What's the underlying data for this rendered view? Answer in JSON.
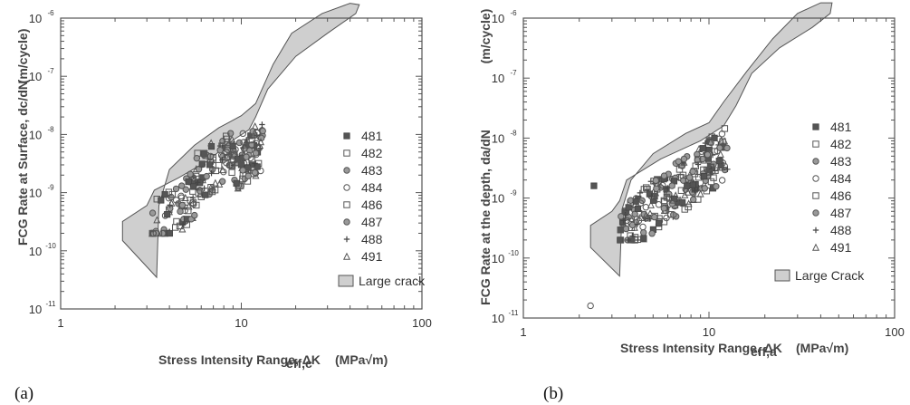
{
  "chart_data": [
    {
      "type": "scatter",
      "panel_label": "(a)",
      "xlabel": "Stress Intensity Range, ΔK",
      "xlabel_sub": "eff,c",
      "xlabel_unit": "(MPa√m)",
      "ylabel": "FCG Rate at Surface, dc/dN",
      "ylabel_unit": "(m/cycle)",
      "xscale": "log",
      "yscale": "log",
      "xlim": [
        1,
        100
      ],
      "ylim": [
        1e-11,
        1e-06
      ],
      "x_ticks": [
        "1",
        "10",
        "100"
      ],
      "y_ticks": [
        {
          "base": "10",
          "exp": "-11",
          "value": 1e-11
        },
        {
          "base": "10",
          "exp": "-10",
          "value": 1e-10
        },
        {
          "base": "10",
          "exp": "-9",
          "value": 1e-09
        },
        {
          "base": "10",
          "exp": "-8",
          "value": 1e-08
        },
        {
          "base": "10",
          "exp": "-7",
          "value": 1e-07
        },
        {
          "base": "10",
          "exp": "-6",
          "value": 1e-06
        }
      ],
      "legend": [
        "481",
        "482",
        "483",
        "484",
        "486",
        "487",
        "488",
        "491"
      ],
      "band_label": "Large crack",
      "band_polygon": [
        [
          2.2,
          3.2e-10
        ],
        [
          3.0,
          6e-10
        ],
        [
          3.3,
          1.1e-09
        ],
        [
          4.5,
          1.8e-09
        ],
        [
          6.5,
          3.5e-09
        ],
        [
          9,
          8e-09
        ],
        [
          11,
          1.2e-08
        ],
        [
          12,
          2e-08
        ],
        [
          14,
          6e-08
        ],
        [
          20,
          2.2e-07
        ],
        [
          30,
          5.5e-07
        ],
        [
          43,
          1.2e-06
        ],
        [
          45,
          1.7e-06
        ],
        [
          40,
          1.8e-06
        ],
        [
          28,
          1.2e-06
        ],
        [
          19,
          5.5e-07
        ],
        [
          15,
          1.6e-07
        ],
        [
          12,
          3.4e-08
        ],
        [
          10,
          2.1e-08
        ],
        [
          7.5,
          1.3e-08
        ],
        [
          5.5,
          6.5e-09
        ],
        [
          4,
          2.5e-09
        ],
        [
          3.5,
          6e-10
        ],
        [
          3.4,
          3.5e-11
        ],
        [
          2.2,
          1.5e-10
        ]
      ]
    },
    {
      "type": "scatter",
      "panel_label": "(b)",
      "xlabel": "Stress Intensity Range, ΔK",
      "xlabel_sub": "eff,a",
      "xlabel_unit": "(MPa√m)",
      "ylabel": "FCG Rate at the depth, da/dN",
      "ylabel_unit": "(m/cycle)",
      "xscale": "log",
      "yscale": "log",
      "xlim": [
        1,
        100
      ],
      "ylim": [
        1e-11,
        1e-06
      ],
      "x_ticks": [
        "1",
        "10",
        "100"
      ],
      "y_ticks": [
        {
          "base": "10",
          "exp": "-11",
          "value": 1e-11
        },
        {
          "base": "10",
          "exp": "-10",
          "value": 1e-10
        },
        {
          "base": "10",
          "exp": "-9",
          "value": 1e-09
        },
        {
          "base": "10",
          "exp": "-8",
          "value": 1e-08
        },
        {
          "base": "10",
          "exp": "-7",
          "value": 1e-07
        },
        {
          "base": "10",
          "exp": "-6",
          "value": 1e-06
        }
      ],
      "legend": [
        "481",
        "482",
        "483",
        "484",
        "486",
        "487",
        "488",
        "491"
      ],
      "band_label": "Large Crack",
      "band_polygon": [
        [
          2.3,
          3.5e-10
        ],
        [
          3.0,
          6e-10
        ],
        [
          3.3,
          9e-10
        ],
        [
          3.6,
          2e-09
        ],
        [
          5.5,
          4.5e-09
        ],
        [
          9,
          9e-09
        ],
        [
          12,
          1.6e-08
        ],
        [
          14,
          3.5e-08
        ],
        [
          17,
          1.2e-07
        ],
        [
          24,
          3.2e-07
        ],
        [
          36,
          7e-07
        ],
        [
          45,
          1.2e-06
        ],
        [
          46,
          1.8e-06
        ],
        [
          40,
          1.8e-06
        ],
        [
          30,
          1.2e-06
        ],
        [
          22,
          4.5e-07
        ],
        [
          16,
          1.3e-07
        ],
        [
          12,
          4e-08
        ],
        [
          10,
          1.8e-08
        ],
        [
          7.5,
          1.2e-08
        ],
        [
          5,
          5.5e-09
        ],
        [
          3.8,
          2e-09
        ],
        [
          3.4,
          6.5e-10
        ],
        [
          3.3,
          5e-11
        ],
        [
          2.3,
          1.5e-10
        ]
      ]
    }
  ]
}
